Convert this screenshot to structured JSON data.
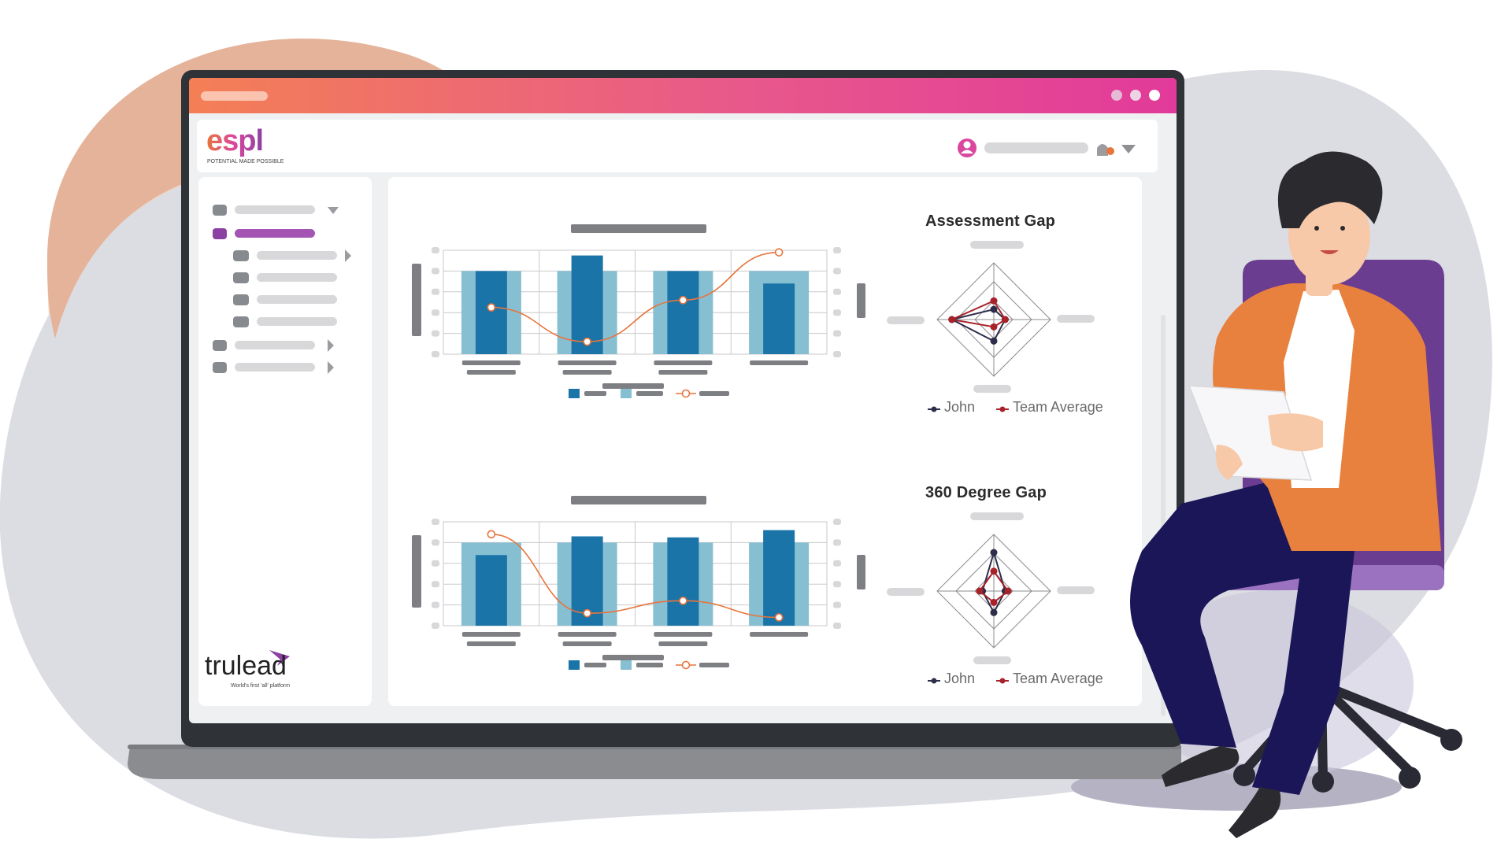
{
  "app": {
    "brand_logo_text": "espl",
    "brand_tagline": "POTENTIAL MADE POSSIBLE",
    "footer_logo_text": "trulead",
    "footer_tagline": "World's first 'all' platform"
  },
  "charts": {
    "assessment": {
      "title": "Assessment Gap"
    },
    "degree360": {
      "title": "360 Degree Gap"
    }
  },
  "legend": {
    "series1": "John",
    "series2": "Team Average"
  },
  "colors": {
    "bar_dark": "#1a74a8",
    "bar_light": "#86bfd2",
    "line_orange": "#e8743b",
    "radar_john": "#2d2e4a",
    "radar_team": "#a8222a",
    "accent_purple": "#8b3fa3",
    "titlebar_start": "#f47f55",
    "titlebar_end": "#e23a9a"
  },
  "chart_data": [
    {
      "type": "bar",
      "categories": [
        "",
        "",
        "",
        ""
      ],
      "series": [
        {
          "values": [
            80,
            80,
            80,
            80
          ]
        },
        {
          "values": [
            80,
            95,
            80,
            68
          ]
        }
      ],
      "line_overlay": {
        "values": [
          45,
          12,
          52,
          98
        ]
      }
    },
    {
      "type": "bar",
      "categories": [
        "",
        "",
        "",
        ""
      ],
      "series": [
        {
          "values": [
            80,
            80,
            80,
            80
          ]
        },
        {
          "values": [
            68,
            86,
            85,
            92
          ]
        }
      ],
      "line_overlay": {
        "values": [
          88,
          12,
          24,
          8
        ]
      }
    }
  ]
}
